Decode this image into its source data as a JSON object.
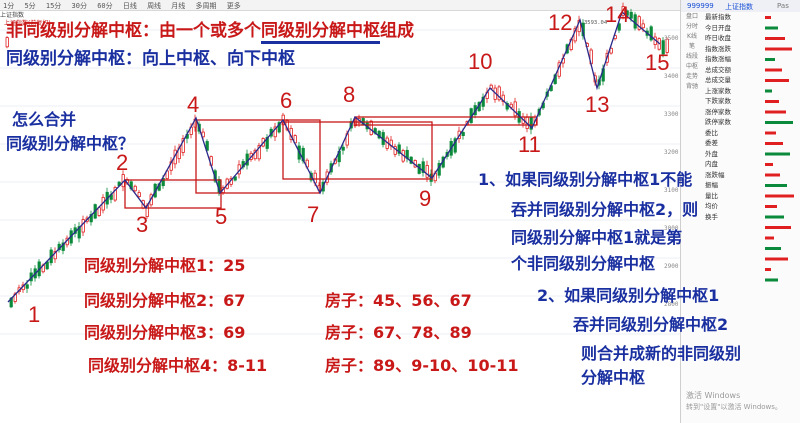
{
  "toolbar": {
    "items": [
      "1分",
      "5分",
      "15分",
      "30分",
      "60分",
      "日线",
      "周线",
      "月线",
      "多周期",
      "更多"
    ],
    "subtitle": "上证指数",
    "chart_tag": "上证指数(前复权)"
  },
  "side_panel": {
    "code": "999999",
    "name": "上证指数",
    "tag": "Pas",
    "side_labels": [
      "盘口",
      "分时",
      "K线",
      "笔",
      "线段",
      "中枢",
      "走势",
      "背驰"
    ],
    "list_items": [
      "最新指数",
      "今日开盘",
      "昨日收盘",
      "指数涨跌",
      "指数涨幅",
      "总成交额",
      "总成交量",
      "上涨家数",
      "下跌家数",
      "涨停家数",
      "跌停家数",
      "委比",
      "委差",
      "外盘",
      "内盘",
      "涨跌幅",
      "振幅",
      "量比",
      "均价",
      "换手"
    ],
    "peak_label": "3593.04",
    "tick_values": [
      "3500",
      "3400",
      "3300",
      "3200",
      "3100",
      "3000",
      "2900",
      "2800"
    ]
  },
  "annotations": {
    "title_a": "非同级别分解中枢：由一个或多个",
    "title_b": "同级别分解中枢",
    "title_c": "组成",
    "line2": "同级别分解中枢：向上中枢、向下中枢",
    "question_1": "怎么合并",
    "question_2": "同级别分解中枢？",
    "rule1_l1": "1、如果同级别分解中枢1不能",
    "rule1_l2": "吞并同级别分解中枢2，则",
    "rule1_l3": "同级别分解中枢1就是第",
    "rule1_l4": "个非同级别分解中枢",
    "rule2_l1": "2、如果同级别分解中枢1",
    "rule2_l2": "吞并同级别分解中枢2",
    "rule2_l3": "则合并成新的非同级别",
    "rule2_l4": "分解中枢",
    "pivot1": "同级别分解中枢1：25",
    "pivot2": "同级别分解中枢2：67",
    "pivot3": "同级别分解中枢3：69",
    "pivot4": "同级别分解中枢4：8-11",
    "house2": "房子：45、56、67",
    "house3": "房子：67、78、89",
    "house4": "房子：89、9-10、10-11",
    "watermark_1": "激活 Windows",
    "watermark_2": "转到\"设置\"以激活 Windows。"
  },
  "vertex_labels": [
    "1",
    "2",
    "3",
    "4",
    "5",
    "6",
    "7",
    "8",
    "9",
    "10",
    "11",
    "12",
    "13",
    "14",
    "15"
  ],
  "colors": {
    "annotation_red": "#c81818",
    "annotation_blue": "#1a2fa0",
    "candle_up": "#e02020",
    "candle_down": "#0a8a3a",
    "stroke_line": "#2a2a8c",
    "pivot_box": "#c81818"
  }
}
